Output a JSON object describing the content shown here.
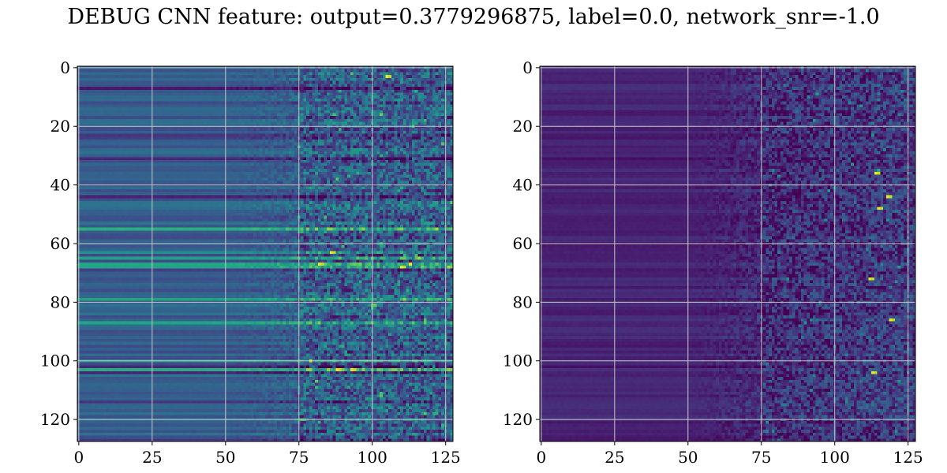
{
  "figure": {
    "title": "DEBUG CNN feature: output=0.3779296875, label=0.0, network_snr=-1.0"
  },
  "chart_data": [
    {
      "type": "heatmap",
      "title": "",
      "xlabel": "",
      "ylabel": "",
      "rows": 128,
      "cols": 128,
      "xlim": [
        -0.5,
        127.5
      ],
      "ylim": [
        127.5,
        -0.5
      ],
      "x_ticks": [
        0,
        25,
        50,
        75,
        100,
        125
      ],
      "y_ticks": [
        0,
        20,
        40,
        60,
        80,
        100,
        120
      ],
      "grid": true,
      "colormap": "viridis",
      "description_of_pattern": {
        "smooth_cols_until": 50,
        "transition_cols": [
          50,
          75
        ],
        "noisy_cols_from": 75,
        "base_level": 0.3,
        "bright_rows": [
          55,
          63,
          65,
          67,
          68,
          79,
          87,
          100,
          103
        ],
        "dark_rows": [
          7,
          23,
          24,
          31,
          44,
          69,
          102,
          104,
          114,
          127
        ],
        "hot_spots": [
          [
            3,
            105
          ],
          [
            63,
            86
          ],
          [
            67,
            82
          ],
          [
            103,
            88
          ],
          [
            103,
            93
          ],
          [
            68,
            110
          ]
        ]
      }
    },
    {
      "type": "heatmap",
      "title": "",
      "xlabel": "",
      "ylabel": "",
      "rows": 128,
      "cols": 128,
      "xlim": [
        -0.5,
        127.5
      ],
      "ylim": [
        127.5,
        -0.5
      ],
      "x_ticks": [
        0,
        25,
        50,
        75,
        100,
        125
      ],
      "y_ticks": [
        0,
        20,
        40,
        60,
        80,
        100,
        120
      ],
      "grid": true,
      "colormap": "viridis",
      "description_of_pattern": {
        "smooth_cols_until": 50,
        "transition_cols": [
          50,
          75
        ],
        "noisy_cols_from": 75,
        "base_level": 0.1,
        "bright_rows": [],
        "dark_rows": [
          23,
          24,
          31,
          69,
          102
        ],
        "hot_spots": [
          [
            104,
            113
          ],
          [
            48,
            115
          ],
          [
            44,
            118
          ],
          [
            36,
            114
          ],
          [
            86,
            119
          ],
          [
            72,
            112
          ]
        ]
      }
    }
  ]
}
